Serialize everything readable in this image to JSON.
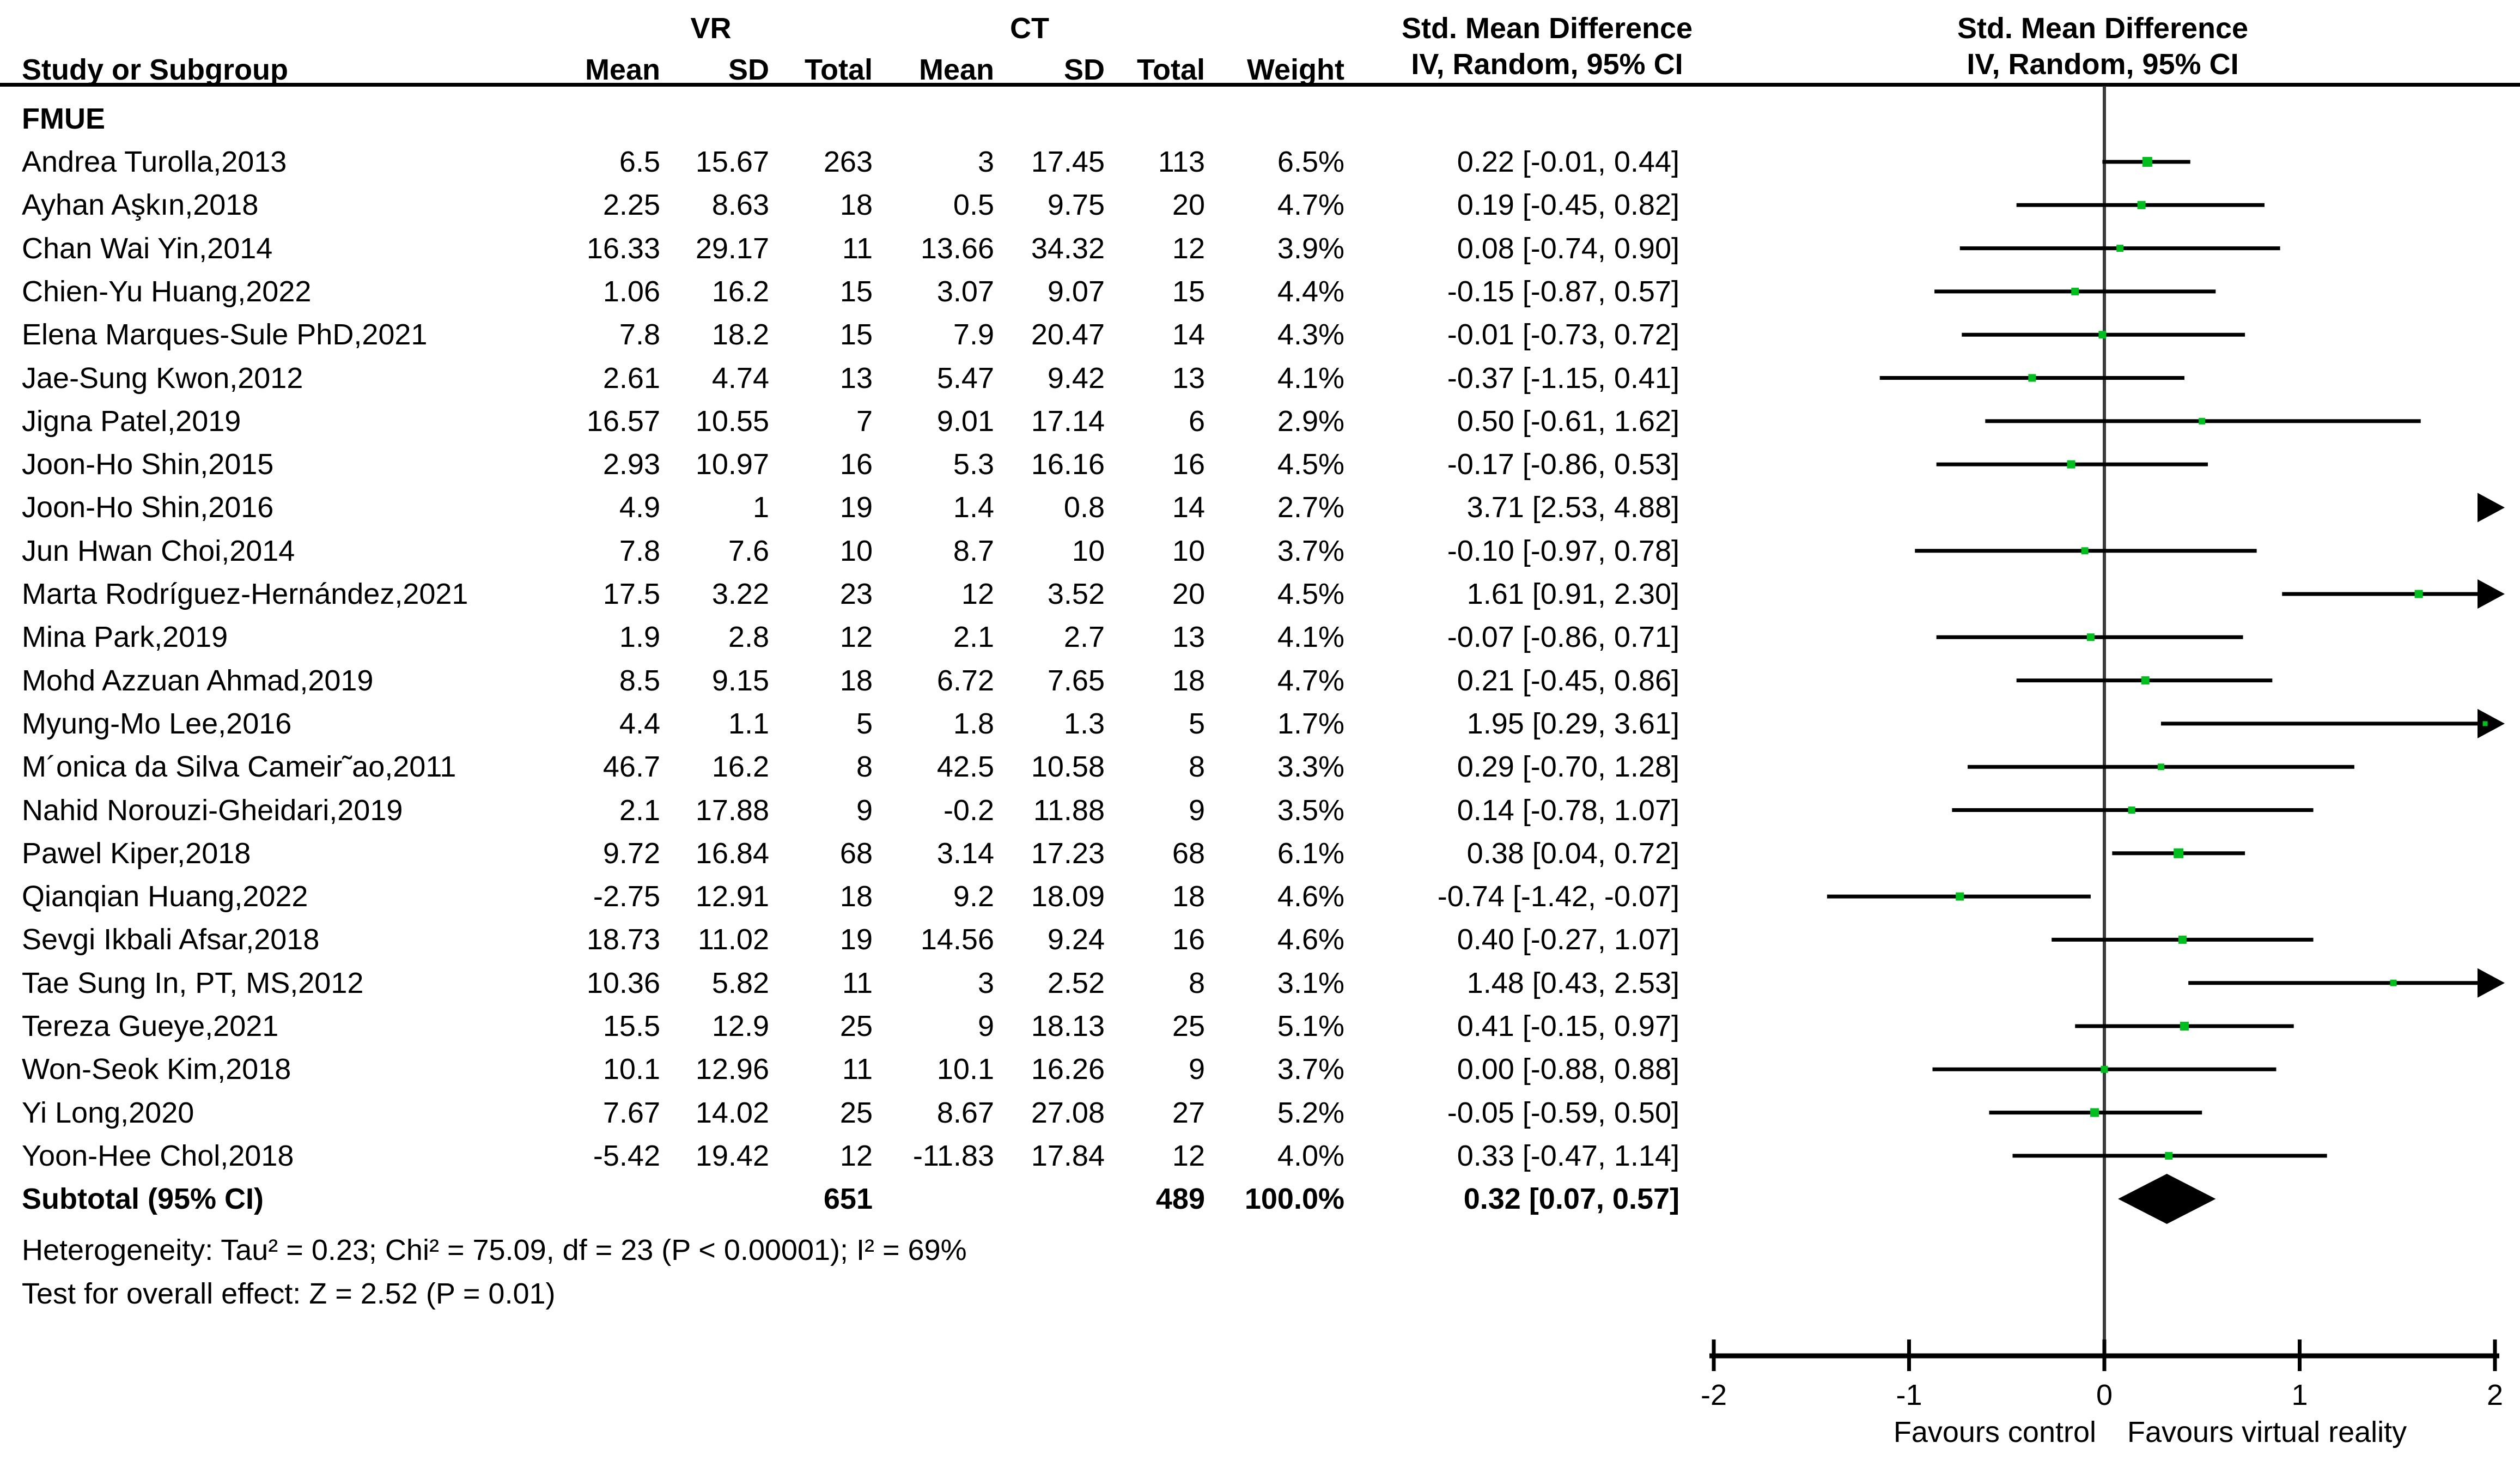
{
  "header": {
    "group_vr": "VR",
    "group_ct": "CT",
    "smd_left_line1": "Std. Mean Difference",
    "smd_left_line2": "IV, Random, 95% CI",
    "smd_right_line1": "Std. Mean Difference",
    "smd_right_line2": "IV, Random, 95% CI",
    "col_study": "Study or Subgroup",
    "col_mean": "Mean",
    "col_sd": "SD",
    "col_total": "Total",
    "col_weight": "Weight"
  },
  "group_label": "FMUE",
  "chart_data": {
    "type": "forest",
    "axis": {
      "min": -2,
      "max": 2,
      "ticks": [
        "-2",
        "-1",
        "0",
        "1",
        "2"
      ],
      "label_left": "Favours control",
      "label_right": "Favours virtual reality"
    },
    "marker_color": "#00BE1E",
    "line_color": "#000000",
    "zero_line_color": "#3a3a3a",
    "studies": [
      {
        "name": "Andrea Turolla,2013",
        "vr_mean": "6.5",
        "vr_sd": "15.67",
        "vr_total": "263",
        "ct_mean": "3",
        "ct_sd": "17.45",
        "ct_total": "113",
        "weight": "6.5%",
        "ci_text": "0.22 [-0.01, 0.44]",
        "est": 0.22,
        "lo": -0.01,
        "hi": 0.44,
        "w": 6.5
      },
      {
        "name": "Ayhan Aşkın,2018",
        "vr_mean": "2.25",
        "vr_sd": "8.63",
        "vr_total": "18",
        "ct_mean": "0.5",
        "ct_sd": "9.75",
        "ct_total": "20",
        "weight": "4.7%",
        "ci_text": "0.19 [-0.45, 0.82]",
        "est": 0.19,
        "lo": -0.45,
        "hi": 0.82,
        "w": 4.7
      },
      {
        "name": "Chan Wai Yin,2014",
        "vr_mean": "16.33",
        "vr_sd": "29.17",
        "vr_total": "11",
        "ct_mean": "13.66",
        "ct_sd": "34.32",
        "ct_total": "12",
        "weight": "3.9%",
        "ci_text": "0.08 [-0.74, 0.90]",
        "est": 0.08,
        "lo": -0.74,
        "hi": 0.9,
        "w": 3.9
      },
      {
        "name": "Chien-Yu Huang,2022",
        "vr_mean": "1.06",
        "vr_sd": "16.2",
        "vr_total": "15",
        "ct_mean": "3.07",
        "ct_sd": "9.07",
        "ct_total": "15",
        "weight": "4.4%",
        "ci_text": "-0.15 [-0.87, 0.57]",
        "est": -0.15,
        "lo": -0.87,
        "hi": 0.57,
        "w": 4.4
      },
      {
        "name": "Elena Marques-Sule PhD,2021",
        "vr_mean": "7.8",
        "vr_sd": "18.2",
        "vr_total": "15",
        "ct_mean": "7.9",
        "ct_sd": "20.47",
        "ct_total": "14",
        "weight": "4.3%",
        "ci_text": "-0.01 [-0.73, 0.72]",
        "est": -0.01,
        "lo": -0.73,
        "hi": 0.72,
        "w": 4.3
      },
      {
        "name": "Jae-Sung Kwon,2012",
        "vr_mean": "2.61",
        "vr_sd": "4.74",
        "vr_total": "13",
        "ct_mean": "5.47",
        "ct_sd": "9.42",
        "ct_total": "13",
        "weight": "4.1%",
        "ci_text": "-0.37 [-1.15, 0.41]",
        "est": -0.37,
        "lo": -1.15,
        "hi": 0.41,
        "w": 4.1
      },
      {
        "name": "Jigna Patel,2019",
        "vr_mean": "16.57",
        "vr_sd": "10.55",
        "vr_total": "7",
        "ct_mean": "9.01",
        "ct_sd": "17.14",
        "ct_total": "6",
        "weight": "2.9%",
        "ci_text": "0.50 [-0.61, 1.62]",
        "est": 0.5,
        "lo": -0.61,
        "hi": 1.62,
        "w": 2.9
      },
      {
        "name": "Joon-Ho Shin,2015",
        "vr_mean": "2.93",
        "vr_sd": "10.97",
        "vr_total": "16",
        "ct_mean": "5.3",
        "ct_sd": "16.16",
        "ct_total": "16",
        "weight": "4.5%",
        "ci_text": "-0.17 [-0.86, 0.53]",
        "est": -0.17,
        "lo": -0.86,
        "hi": 0.53,
        "w": 4.5
      },
      {
        "name": "Joon-Ho Shin,2016",
        "vr_mean": "4.9",
        "vr_sd": "1",
        "vr_total": "19",
        "ct_mean": "1.4",
        "ct_sd": "0.8",
        "ct_total": "14",
        "weight": "2.7%",
        "ci_text": "3.71 [2.53, 4.88]",
        "est": 3.71,
        "lo": 2.53,
        "hi": 4.88,
        "w": 2.7
      },
      {
        "name": "Jun Hwan Choi,2014",
        "vr_mean": "7.8",
        "vr_sd": "7.6",
        "vr_total": "10",
        "ct_mean": "8.7",
        "ct_sd": "10",
        "ct_total": "10",
        "weight": "3.7%",
        "ci_text": "-0.10 [-0.97, 0.78]",
        "est": -0.1,
        "lo": -0.97,
        "hi": 0.78,
        "w": 3.7
      },
      {
        "name": "Marta Rodríguez-Hernández,2021",
        "vr_mean": "17.5",
        "vr_sd": "3.22",
        "vr_total": "23",
        "ct_mean": "12",
        "ct_sd": "3.52",
        "ct_total": "20",
        "weight": "4.5%",
        "ci_text": "1.61 [0.91, 2.30]",
        "est": 1.61,
        "lo": 0.91,
        "hi": 2.3,
        "w": 4.5
      },
      {
        "name": "Mina Park,2019",
        "vr_mean": "1.9",
        "vr_sd": "2.8",
        "vr_total": "12",
        "ct_mean": "2.1",
        "ct_sd": "2.7",
        "ct_total": "13",
        "weight": "4.1%",
        "ci_text": "-0.07 [-0.86, 0.71]",
        "est": -0.07,
        "lo": -0.86,
        "hi": 0.71,
        "w": 4.1
      },
      {
        "name": "Mohd Azzuan Ahmad,2019",
        "vr_mean": "8.5",
        "vr_sd": "9.15",
        "vr_total": "18",
        "ct_mean": "6.72",
        "ct_sd": "7.65",
        "ct_total": "18",
        "weight": "4.7%",
        "ci_text": "0.21 [-0.45, 0.86]",
        "est": 0.21,
        "lo": -0.45,
        "hi": 0.86,
        "w": 4.7
      },
      {
        "name": "Myung-Mo Lee,2016",
        "vr_mean": "4.4",
        "vr_sd": "1.1",
        "vr_total": "5",
        "ct_mean": "1.8",
        "ct_sd": "1.3",
        "ct_total": "5",
        "weight": "1.7%",
        "ci_text": "1.95 [0.29, 3.61]",
        "est": 1.95,
        "lo": 0.29,
        "hi": 3.61,
        "w": 1.7
      },
      {
        "name": "M´onica da Silva Cameir˜ao,2011",
        "vr_mean": "46.7",
        "vr_sd": "16.2",
        "vr_total": "8",
        "ct_mean": "42.5",
        "ct_sd": "10.58",
        "ct_total": "8",
        "weight": "3.3%",
        "ci_text": "0.29 [-0.70, 1.28]",
        "est": 0.29,
        "lo": -0.7,
        "hi": 1.28,
        "w": 3.3
      },
      {
        "name": "Nahid Norouzi-Gheidari,2019",
        "vr_mean": "2.1",
        "vr_sd": "17.88",
        "vr_total": "9",
        "ct_mean": "-0.2",
        "ct_sd": "11.88",
        "ct_total": "9",
        "weight": "3.5%",
        "ci_text": "0.14 [-0.78, 1.07]",
        "est": 0.14,
        "lo": -0.78,
        "hi": 1.07,
        "w": 3.5
      },
      {
        "name": "Pawel Kiper,2018",
        "vr_mean": "9.72",
        "vr_sd": "16.84",
        "vr_total": "68",
        "ct_mean": "3.14",
        "ct_sd": "17.23",
        "ct_total": "68",
        "weight": "6.1%",
        "ci_text": "0.38 [0.04, 0.72]",
        "est": 0.38,
        "lo": 0.04,
        "hi": 0.72,
        "w": 6.1
      },
      {
        "name": "Qianqian Huang,2022",
        "vr_mean": "-2.75",
        "vr_sd": "12.91",
        "vr_total": "18",
        "ct_mean": "9.2",
        "ct_sd": "18.09",
        "ct_total": "18",
        "weight": "4.6%",
        "ci_text": "-0.74 [-1.42, -0.07]",
        "est": -0.74,
        "lo": -1.42,
        "hi": -0.07,
        "w": 4.6
      },
      {
        "name": "Sevgi Ikbali Afsar,2018",
        "vr_mean": "18.73",
        "vr_sd": "11.02",
        "vr_total": "19",
        "ct_mean": "14.56",
        "ct_sd": "9.24",
        "ct_total": "16",
        "weight": "4.6%",
        "ci_text": "0.40 [-0.27, 1.07]",
        "est": 0.4,
        "lo": -0.27,
        "hi": 1.07,
        "w": 4.6
      },
      {
        "name": "Tae Sung In, PT, MS,2012",
        "vr_mean": "10.36",
        "vr_sd": "5.82",
        "vr_total": "11",
        "ct_mean": "3",
        "ct_sd": "2.52",
        "ct_total": "8",
        "weight": "3.1%",
        "ci_text": "1.48 [0.43, 2.53]",
        "est": 1.48,
        "lo": 0.43,
        "hi": 2.53,
        "w": 3.1
      },
      {
        "name": "Tereza Gueye,2021",
        "vr_mean": "15.5",
        "vr_sd": "12.9",
        "vr_total": "25",
        "ct_mean": "9",
        "ct_sd": "18.13",
        "ct_total": "25",
        "weight": "5.1%",
        "ci_text": "0.41 [-0.15, 0.97]",
        "est": 0.41,
        "lo": -0.15,
        "hi": 0.97,
        "w": 5.1
      },
      {
        "name": "Won-Seok Kim,2018",
        "vr_mean": "10.1",
        "vr_sd": "12.96",
        "vr_total": "11",
        "ct_mean": "10.1",
        "ct_sd": "16.26",
        "ct_total": "9",
        "weight": "3.7%",
        "ci_text": "0.00 [-0.88, 0.88]",
        "est": 0.0,
        "lo": -0.88,
        "hi": 0.88,
        "w": 3.7
      },
      {
        "name": "Yi Long,2020",
        "vr_mean": "7.67",
        "vr_sd": "14.02",
        "vr_total": "25",
        "ct_mean": "8.67",
        "ct_sd": "27.08",
        "ct_total": "27",
        "weight": "5.2%",
        "ci_text": "-0.05 [-0.59, 0.50]",
        "est": -0.05,
        "lo": -0.59,
        "hi": 0.5,
        "w": 5.2
      },
      {
        "name": "Yoon-Hee Chol,2018",
        "vr_mean": "-5.42",
        "vr_sd": "19.42",
        "vr_total": "12",
        "ct_mean": "-11.83",
        "ct_sd": "17.84",
        "ct_total": "12",
        "weight": "4.0%",
        "ci_text": "0.33 [-0.47, 1.14]",
        "est": 0.33,
        "lo": -0.47,
        "hi": 1.14,
        "w": 4.0
      }
    ],
    "subtotal": {
      "label": "Subtotal (95% CI)",
      "vr_total": "651",
      "ct_total": "489",
      "weight": "100.0%",
      "ci_text": "0.32 [0.07, 0.57]",
      "est": 0.32,
      "lo": 0.07,
      "hi": 0.57
    },
    "heterogeneity": "Heterogeneity: Tau² = 0.23; Chi² = 75.09, df = 23 (P < 0.00001); I² = 69%",
    "overall_effect": "Test for overall effect: Z = 2.52 (P = 0.01)"
  }
}
